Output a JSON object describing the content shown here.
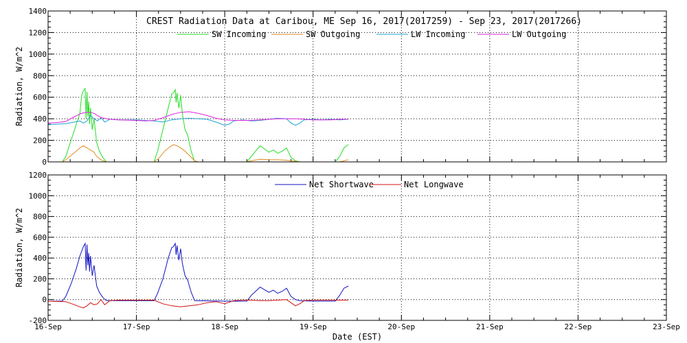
{
  "chart_data": [
    {
      "type": "line",
      "title": "CREST Radiation Data at Caribou, ME   Sep 16, 2017(2017259) - Sep 23, 2017(2017266)",
      "ylabel": "Radiation, W/m^2",
      "xlabel": "",
      "ylim": [
        0,
        1400
      ],
      "yticks": [
        0,
        200,
        400,
        600,
        800,
        1000,
        1200,
        1400
      ],
      "xlim": [
        "2017-09-16",
        "2017-09-23"
      ],
      "xticks": [
        "16-Sep",
        "17-Sep",
        "18-Sep",
        "19-Sep",
        "20-Sep",
        "21-Sep",
        "22-Sep",
        "23-Sep"
      ],
      "grid": true,
      "legend_position": "top",
      "series": [
        {
          "name": "SW Incoming",
          "color": "#22dd22",
          "points": [
            [
              0.0,
              0
            ],
            [
              0.16,
              0
            ],
            [
              0.2,
              50
            ],
            [
              0.26,
              200
            ],
            [
              0.32,
              350
            ],
            [
              0.36,
              450
            ],
            [
              0.38,
              620
            ],
            [
              0.4,
              660
            ],
            [
              0.42,
              680
            ],
            [
              0.43,
              400
            ],
            [
              0.44,
              650
            ],
            [
              0.45,
              420
            ],
            [
              0.46,
              560
            ],
            [
              0.47,
              350
            ],
            [
              0.48,
              500
            ],
            [
              0.5,
              300
            ],
            [
              0.52,
              400
            ],
            [
              0.55,
              180
            ],
            [
              0.58,
              100
            ],
            [
              0.62,
              40
            ],
            [
              0.66,
              0
            ],
            [
              1.0,
              0
            ],
            [
              1.2,
              0
            ],
            [
              1.24,
              100
            ],
            [
              1.3,
              300
            ],
            [
              1.36,
              500
            ],
            [
              1.4,
              630
            ],
            [
              1.42,
              640
            ],
            [
              1.44,
              670
            ],
            [
              1.45,
              550
            ],
            [
              1.46,
              640
            ],
            [
              1.48,
              500
            ],
            [
              1.5,
              620
            ],
            [
              1.52,
              450
            ],
            [
              1.55,
              300
            ],
            [
              1.58,
              250
            ],
            [
              1.62,
              100
            ],
            [
              1.66,
              0
            ],
            [
              2.0,
              0
            ],
            [
              2.25,
              0
            ],
            [
              2.3,
              50
            ],
            [
              2.35,
              100
            ],
            [
              2.4,
              150
            ],
            [
              2.45,
              120
            ],
            [
              2.5,
              90
            ],
            [
              2.55,
              110
            ],
            [
              2.6,
              80
            ],
            [
              2.65,
              100
            ],
            [
              2.7,
              130
            ],
            [
              2.75,
              40
            ],
            [
              2.8,
              10
            ],
            [
              2.85,
              0
            ],
            [
              3.0,
              0
            ],
            [
              3.25,
              0
            ],
            [
              3.3,
              50
            ],
            [
              3.35,
              130
            ],
            [
              3.38,
              150
            ],
            [
              3.4,
              160
            ]
          ]
        },
        {
          "name": "SW Outgoing",
          "color": "#e08a1e",
          "points": [
            [
              0.0,
              0
            ],
            [
              0.16,
              0
            ],
            [
              0.2,
              20
            ],
            [
              0.26,
              60
            ],
            [
              0.32,
              100
            ],
            [
              0.36,
              130
            ],
            [
              0.4,
              150
            ],
            [
              0.44,
              130
            ],
            [
              0.48,
              110
            ],
            [
              0.52,
              90
            ],
            [
              0.55,
              50
            ],
            [
              0.58,
              30
            ],
            [
              0.62,
              10
            ],
            [
              0.66,
              0
            ],
            [
              1.0,
              0
            ],
            [
              1.2,
              0
            ],
            [
              1.26,
              40
            ],
            [
              1.32,
              100
            ],
            [
              1.38,
              140
            ],
            [
              1.42,
              160
            ],
            [
              1.46,
              150
            ],
            [
              1.5,
              130
            ],
            [
              1.55,
              100
            ],
            [
              1.6,
              60
            ],
            [
              1.66,
              10
            ],
            [
              1.7,
              0
            ],
            [
              2.0,
              0
            ],
            [
              2.25,
              0
            ],
            [
              2.3,
              10
            ],
            [
              2.4,
              25
            ],
            [
              2.5,
              20
            ],
            [
              2.6,
              20
            ],
            [
              2.7,
              15
            ],
            [
              2.8,
              5
            ],
            [
              2.85,
              0
            ],
            [
              3.0,
              0
            ],
            [
              3.3,
              0
            ],
            [
              3.35,
              10
            ],
            [
              3.4,
              20
            ]
          ]
        },
        {
          "name": "LW Incoming",
          "color": "#1ea0d0",
          "points": [
            [
              0.0,
              345
            ],
            [
              0.1,
              350
            ],
            [
              0.2,
              355
            ],
            [
              0.3,
              370
            ],
            [
              0.36,
              380
            ],
            [
              0.4,
              360
            ],
            [
              0.44,
              380
            ],
            [
              0.48,
              430
            ],
            [
              0.52,
              400
            ],
            [
              0.56,
              380
            ],
            [
              0.6,
              410
            ],
            [
              0.64,
              370
            ],
            [
              0.7,
              395
            ],
            [
              0.8,
              390
            ],
            [
              1.0,
              390
            ],
            [
              1.1,
              385
            ],
            [
              1.2,
              380
            ],
            [
              1.3,
              370
            ],
            [
              1.4,
              390
            ],
            [
              1.5,
              400
            ],
            [
              1.6,
              405
            ],
            [
              1.7,
              400
            ],
            [
              1.8,
              395
            ],
            [
              1.9,
              370
            ],
            [
              2.0,
              340
            ],
            [
              2.05,
              350
            ],
            [
              2.1,
              380
            ],
            [
              2.2,
              390
            ],
            [
              2.3,
              380
            ],
            [
              2.4,
              385
            ],
            [
              2.5,
              395
            ],
            [
              2.6,
              405
            ],
            [
              2.7,
              400
            ],
            [
              2.75,
              360
            ],
            [
              2.8,
              340
            ],
            [
              2.85,
              360
            ],
            [
              2.9,
              390
            ],
            [
              3.0,
              395
            ],
            [
              3.1,
              390
            ],
            [
              3.2,
              395
            ],
            [
              3.3,
              390
            ],
            [
              3.4,
              395
            ]
          ]
        },
        {
          "name": "LW Outgoing",
          "color": "#dd22dd",
          "points": [
            [
              0.0,
              360
            ],
            [
              0.1,
              365
            ],
            [
              0.2,
              375
            ],
            [
              0.3,
              420
            ],
            [
              0.36,
              445
            ],
            [
              0.4,
              455
            ],
            [
              0.44,
              460
            ],
            [
              0.48,
              460
            ],
            [
              0.52,
              450
            ],
            [
              0.56,
              430
            ],
            [
              0.6,
              410
            ],
            [
              0.7,
              395
            ],
            [
              0.8,
              390
            ],
            [
              1.0,
              385
            ],
            [
              1.1,
              380
            ],
            [
              1.2,
              385
            ],
            [
              1.3,
              410
            ],
            [
              1.4,
              440
            ],
            [
              1.5,
              460
            ],
            [
              1.6,
              465
            ],
            [
              1.7,
              450
            ],
            [
              1.8,
              430
            ],
            [
              1.9,
              405
            ],
            [
              2.0,
              390
            ],
            [
              2.1,
              385
            ],
            [
              2.2,
              385
            ],
            [
              2.3,
              385
            ],
            [
              2.4,
              390
            ],
            [
              2.5,
              395
            ],
            [
              2.6,
              400
            ],
            [
              2.7,
              400
            ],
            [
              2.8,
              400
            ],
            [
              2.9,
              395
            ],
            [
              3.0,
              390
            ],
            [
              3.1,
              390
            ],
            [
              3.2,
              390
            ],
            [
              3.3,
              395
            ],
            [
              3.4,
              395
            ]
          ]
        }
      ]
    },
    {
      "type": "line",
      "title": "",
      "ylabel": "Radiation, W/m^2",
      "xlabel": "Date (EST)",
      "ylim": [
        -200,
        1200
      ],
      "yticks": [
        -200,
        0,
        200,
        400,
        600,
        800,
        1000,
        1200
      ],
      "xlim": [
        "2017-09-16",
        "2017-09-23"
      ],
      "xticks": [
        "16-Sep",
        "17-Sep",
        "18-Sep",
        "19-Sep",
        "20-Sep",
        "21-Sep",
        "22-Sep",
        "23-Sep"
      ],
      "grid": true,
      "legend_position": "top",
      "series": [
        {
          "name": "Net Shortwave",
          "color": "#1010c0",
          "points": [
            [
              0.0,
              -15
            ],
            [
              0.16,
              -15
            ],
            [
              0.2,
              30
            ],
            [
              0.26,
              150
            ],
            [
              0.32,
              300
            ],
            [
              0.36,
              420
            ],
            [
              0.4,
              510
            ],
            [
              0.42,
              540
            ],
            [
              0.43,
              280
            ],
            [
              0.44,
              530
            ],
            [
              0.45,
              330
            ],
            [
              0.46,
              450
            ],
            [
              0.47,
              270
            ],
            [
              0.48,
              420
            ],
            [
              0.5,
              230
            ],
            [
              0.52,
              330
            ],
            [
              0.55,
              130
            ],
            [
              0.58,
              70
            ],
            [
              0.62,
              20
            ],
            [
              0.66,
              -10
            ],
            [
              1.0,
              -10
            ],
            [
              1.2,
              -10
            ],
            [
              1.24,
              60
            ],
            [
              1.3,
              200
            ],
            [
              1.36,
              400
            ],
            [
              1.4,
              500
            ],
            [
              1.42,
              510
            ],
            [
              1.44,
              540
            ],
            [
              1.45,
              430
            ],
            [
              1.46,
              520
            ],
            [
              1.48,
              380
            ],
            [
              1.5,
              490
            ],
            [
              1.52,
              350
            ],
            [
              1.55,
              230
            ],
            [
              1.58,
              190
            ],
            [
              1.62,
              70
            ],
            [
              1.66,
              -10
            ],
            [
              2.0,
              -15
            ],
            [
              2.25,
              -15
            ],
            [
              2.3,
              40
            ],
            [
              2.35,
              80
            ],
            [
              2.4,
              120
            ],
            [
              2.45,
              95
            ],
            [
              2.5,
              70
            ],
            [
              2.55,
              90
            ],
            [
              2.6,
              60
            ],
            [
              2.65,
              80
            ],
            [
              2.7,
              110
            ],
            [
              2.75,
              30
            ],
            [
              2.8,
              0
            ],
            [
              2.85,
              -10
            ],
            [
              3.0,
              -15
            ],
            [
              3.25,
              -15
            ],
            [
              3.3,
              40
            ],
            [
              3.35,
              110
            ],
            [
              3.4,
              130
            ]
          ]
        },
        {
          "name": "Net Longwave",
          "color": "#d01010",
          "points": [
            [
              0.0,
              -15
            ],
            [
              0.2,
              -20
            ],
            [
              0.3,
              -50
            ],
            [
              0.36,
              -70
            ],
            [
              0.4,
              -80
            ],
            [
              0.44,
              -60
            ],
            [
              0.48,
              -30
            ],
            [
              0.52,
              -50
            ],
            [
              0.56,
              -40
            ],
            [
              0.6,
              0
            ],
            [
              0.64,
              -50
            ],
            [
              0.7,
              -10
            ],
            [
              0.8,
              -5
            ],
            [
              1.0,
              -5
            ],
            [
              1.2,
              -5
            ],
            [
              1.3,
              -40
            ],
            [
              1.4,
              -60
            ],
            [
              1.5,
              -70
            ],
            [
              1.6,
              -60
            ],
            [
              1.7,
              -50
            ],
            [
              1.8,
              -30
            ],
            [
              1.9,
              -20
            ],
            [
              2.0,
              -40
            ],
            [
              2.1,
              -10
            ],
            [
              2.2,
              -5
            ],
            [
              2.3,
              -5
            ],
            [
              2.4,
              -10
            ],
            [
              2.5,
              -10
            ],
            [
              2.6,
              -5
            ],
            [
              2.7,
              0
            ],
            [
              2.75,
              -30
            ],
            [
              2.8,
              -60
            ],
            [
              2.85,
              -40
            ],
            [
              2.9,
              -10
            ],
            [
              3.0,
              -5
            ],
            [
              3.2,
              -5
            ],
            [
              3.4,
              -5
            ]
          ]
        }
      ]
    }
  ]
}
